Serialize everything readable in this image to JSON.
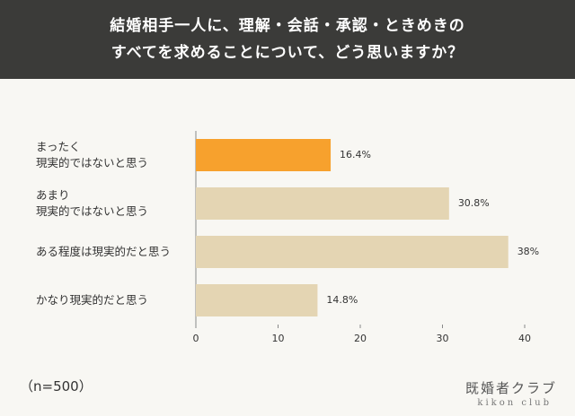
{
  "header": {
    "title": "結婚相手一人に、理解・会話・承認・ときめきの\nすべてを求めることについて、どう思いますか？"
  },
  "chart_data": {
    "type": "bar",
    "orientation": "horizontal",
    "categories": [
      "まったく\n現実的ではないと思う",
      "あまり\n現実的ではないと思う",
      "ある程度は現実的だと思う",
      "かなり現実的だと思う"
    ],
    "values": [
      16.4,
      30.8,
      38,
      14.8
    ],
    "value_labels": [
      "16.4%",
      "30.8%",
      "38%",
      "14.8%"
    ],
    "colors": [
      "#f7a12d",
      "#e4d5b3",
      "#e4d5b3",
      "#e4d5b3"
    ],
    "xlim": [
      0,
      40
    ],
    "xticks": [
      0,
      10,
      20,
      30,
      40
    ]
  },
  "note": "（n=500）",
  "logo": {
    "name": "既婚者クラブ",
    "sub": "kikon club"
  }
}
